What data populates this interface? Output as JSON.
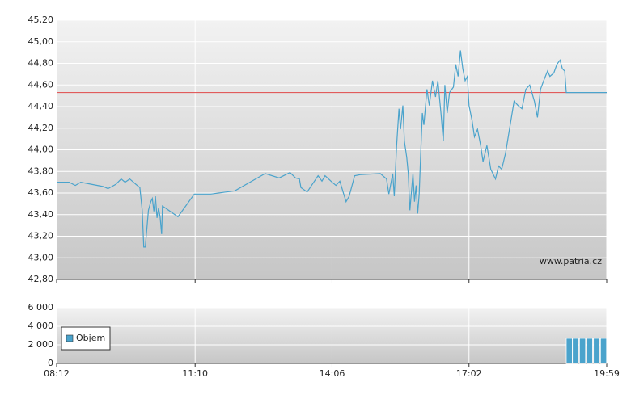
{
  "chart_data": [
    {
      "type": "line",
      "annotation": "www.patria.cz",
      "color": "#4aa3cc",
      "grid": true,
      "reference_line": {
        "value": 44.53,
        "color": "#e04848"
      },
      "x": [
        "08:12",
        "08:28",
        "08:36",
        "08:43",
        "09:12",
        "09:18",
        "09:28",
        "09:35",
        "09:40",
        "09:46",
        "09:54",
        "09:59",
        "10:02",
        "10:04",
        "10:06",
        "10:10",
        "10:13",
        "10:15",
        "10:17",
        "10:19",
        "10:21",
        "10:23",
        "10:25",
        "10:27",
        "10:28",
        "10:32",
        "10:48",
        "11:09",
        "11:30",
        "12:01",
        "12:40",
        "12:58",
        "13:12",
        "13:19",
        "13:24",
        "13:26",
        "13:34",
        "13:48",
        "13:53",
        "13:57",
        "14:06",
        "14:11",
        "14:16",
        "14:21",
        "14:24",
        "14:28",
        "14:35",
        "14:42",
        "15:08",
        "15:16",
        "15:19",
        "15:24",
        "15:26",
        "15:29",
        "15:32",
        "15:34",
        "15:37",
        "15:39",
        "15:42",
        "15:44",
        "15:46",
        "15:50",
        "15:52",
        "15:54",
        "15:56",
        "15:58",
        "16:00",
        "16:02",
        "16:04",
        "16:08",
        "16:11",
        "16:15",
        "16:19",
        "16:22",
        "16:26",
        "16:29",
        "16:31",
        "16:34",
        "16:37",
        "16:42",
        "16:45",
        "16:48",
        "16:51",
        "16:54",
        "16:57",
        "17:00",
        "17:02",
        "17:06",
        "17:09",
        "17:13",
        "17:17",
        "17:20",
        "17:25",
        "17:30",
        "17:36",
        "17:40",
        "17:44",
        "17:49",
        "17:54",
        "18:00",
        "18:05",
        "18:10",
        "18:15",
        "18:20",
        "18:26",
        "18:30",
        "18:34",
        "18:38",
        "18:43",
        "18:46",
        "18:51",
        "18:55",
        "18:59",
        "19:02",
        "19:05",
        "19:07",
        "19:59"
      ],
      "values": [
        43.7,
        43.7,
        43.67,
        43.7,
        43.66,
        43.64,
        43.68,
        43.73,
        43.7,
        43.73,
        43.68,
        43.65,
        43.44,
        43.1,
        43.1,
        43.44,
        43.52,
        43.55,
        43.43,
        43.57,
        43.37,
        43.46,
        43.38,
        43.22,
        43.48,
        43.46,
        43.38,
        43.59,
        43.59,
        43.62,
        43.78,
        43.74,
        43.79,
        43.74,
        43.73,
        43.65,
        43.61,
        43.76,
        43.71,
        43.76,
        43.7,
        43.67,
        43.71,
        43.59,
        43.52,
        43.57,
        43.76,
        43.77,
        43.78,
        43.73,
        43.59,
        43.78,
        43.57,
        44.04,
        44.38,
        44.19,
        44.41,
        44.08,
        43.93,
        43.78,
        43.44,
        43.78,
        43.52,
        43.67,
        43.41,
        43.59,
        43.97,
        44.34,
        44.23,
        44.56,
        44.41,
        44.64,
        44.49,
        44.64,
        44.34,
        44.08,
        44.6,
        44.34,
        44.53,
        44.58,
        44.79,
        44.68,
        44.92,
        44.75,
        44.64,
        44.68,
        44.41,
        44.27,
        44.12,
        44.19,
        44.04,
        43.89,
        44.04,
        43.82,
        43.73,
        43.85,
        43.82,
        43.97,
        44.19,
        44.45,
        44.41,
        44.38,
        44.56,
        44.6,
        44.45,
        44.3,
        44.56,
        44.64,
        44.73,
        44.68,
        44.71,
        44.79,
        44.83,
        44.75,
        44.73,
        44.53,
        44.53
      ],
      "xlim": [
        "08:12",
        "19:59"
      ],
      "xticks": [
        "08:12",
        "11:10",
        "14:06",
        "17:02",
        "19:59"
      ],
      "ylim": [
        42.8,
        45.2
      ],
      "yticks": [
        {
          "value": 42.8,
          "label": "42,80"
        },
        {
          "value": 43.0,
          "label": "43,00"
        },
        {
          "value": 43.2,
          "label": "43,20"
        },
        {
          "value": 43.4,
          "label": "43,40"
        },
        {
          "value": 43.6,
          "label": "43,60"
        },
        {
          "value": 43.8,
          "label": "43,80"
        },
        {
          "value": 44.0,
          "label": "44,00"
        },
        {
          "value": 44.2,
          "label": "44,20"
        },
        {
          "value": 44.4,
          "label": "44,40"
        },
        {
          "value": 44.6,
          "label": "44,60"
        },
        {
          "value": 44.8,
          "label": "44,80"
        },
        {
          "value": 45.0,
          "label": "45,00"
        },
        {
          "value": 45.2,
          "label": "45,20"
        }
      ]
    },
    {
      "type": "bar",
      "grid": true,
      "legend": "upper-left",
      "x": [
        "19:07",
        "19:15",
        "19:24",
        "19:33",
        "19:42",
        "19:51"
      ],
      "series": [
        {
          "name": "Objem",
          "color": "#4aa3cc",
          "values": [
            2700,
            2700,
            2700,
            2700,
            2700,
            2700
          ]
        }
      ],
      "xlim": [
        "08:12",
        "19:59"
      ],
      "xticks": [
        "08:12",
        "11:10",
        "14:06",
        "17:02",
        "19:59"
      ],
      "ylim": [
        0,
        6000
      ],
      "yticks": [
        0,
        {
          "value": 2000,
          "label": "2 000"
        },
        {
          "value": 4000,
          "label": "4 000"
        },
        {
          "value": 6000,
          "label": "6 000"
        }
      ]
    }
  ]
}
